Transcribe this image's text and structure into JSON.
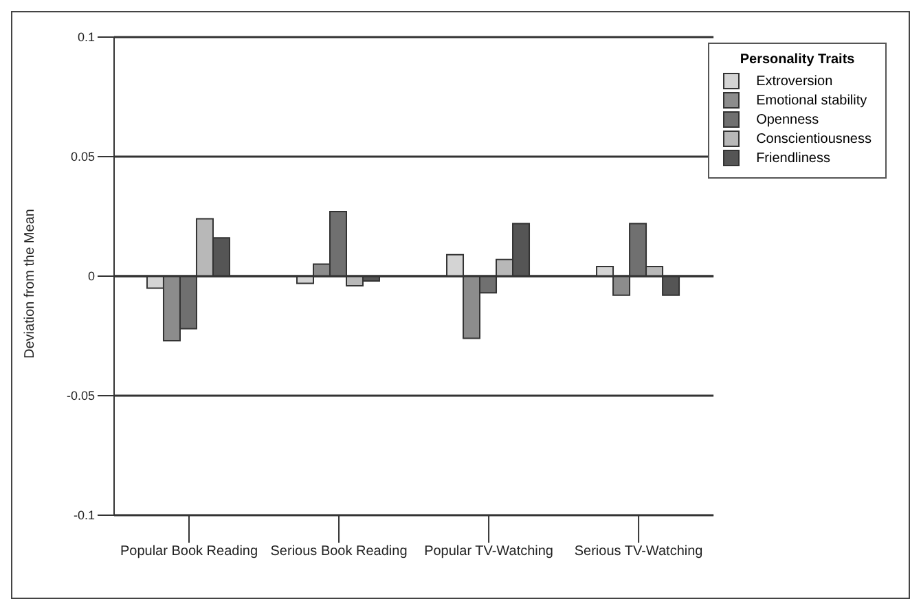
{
  "chart_data": {
    "type": "bar",
    "ylabel": "Deviation from the Mean",
    "legend_title": "Personality Traits",
    "categories": [
      "Popular Book Reading",
      "Serious Book Reading",
      "Popular TV-Watching",
      "Serious TV-Watching"
    ],
    "series": [
      {
        "name": "Extroversion",
        "color": "#d4d4d4",
        "values": [
          -0.005,
          -0.003,
          0.009,
          0.004
        ]
      },
      {
        "name": "Emotional stability",
        "color": "#8c8c8c",
        "values": [
          -0.027,
          0.005,
          -0.026,
          -0.008
        ]
      },
      {
        "name": "Openness",
        "color": "#707070",
        "values": [
          -0.022,
          0.027,
          -0.007,
          0.022
        ]
      },
      {
        "name": "Conscientiousness",
        "color": "#b8b8b8",
        "values": [
          0.024,
          -0.004,
          0.007,
          0.004
        ]
      },
      {
        "name": "Friendliness",
        "color": "#555555",
        "values": [
          0.016,
          -0.002,
          0.022,
          -0.008
        ]
      }
    ],
    "ylim": [
      -0.1,
      0.1
    ],
    "yticks": [
      -0.1,
      -0.05,
      0,
      0.05,
      0.1
    ],
    "grid": "y",
    "legend": "top right"
  }
}
